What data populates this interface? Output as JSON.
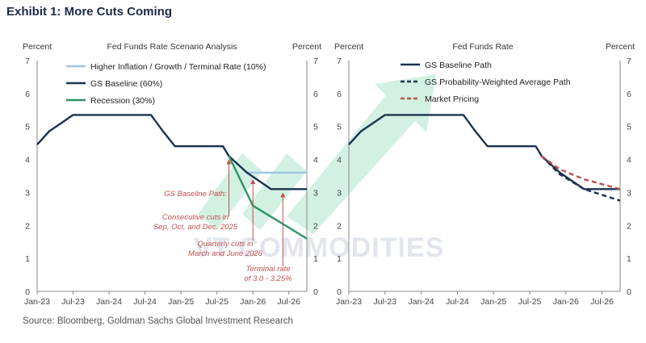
{
  "exhibit_title": "Exhibit 1: More Cuts Coming",
  "source": "Source: Bloomberg, Goldman Sachs Global Investment Research",
  "watermark": "VT COMMODITIES",
  "colors": {
    "baseline": "#1b3350",
    "higher": "#9fc5e3",
    "recession": "#2e9464",
    "prob_weighted": "#1b3350",
    "market": "#c0504d",
    "annotation": "#c0504d",
    "watermark": "#7fd6b0"
  },
  "chart_data": [
    {
      "type": "line",
      "title": "Fed Funds Rate Scenario Analysis",
      "ylabel_left": "Percent",
      "ylabel_right": "Percent",
      "ylim": [
        0,
        7
      ],
      "yticks": [
        "0",
        "1",
        "2",
        "3",
        "4",
        "5",
        "6",
        "7"
      ],
      "xlim": [
        "2023-01",
        "2026-10"
      ],
      "xticks": [
        "Jan-23",
        "Jul-23",
        "Jan-24",
        "Jul-24",
        "Jan-25",
        "Jul-25",
        "Jan-26",
        "Jul-26"
      ],
      "legend_position": "top-left",
      "series": [
        {
          "name": "Higher Inflation / Growth / Terminal Rate (10%)",
          "style": "solid",
          "color_key": "higher",
          "points": [
            [
              "2025-09",
              4.1
            ],
            [
              "2025-12",
              3.6
            ],
            [
              "2026-10",
              3.6
            ]
          ]
        },
        {
          "name": "GS Baseline (60%)",
          "style": "solid",
          "color_key": "baseline",
          "points": [
            [
              "2023-01",
              4.45
            ],
            [
              "2023-03",
              4.85
            ],
            [
              "2023-05",
              5.1
            ],
            [
              "2023-07",
              5.35
            ],
            [
              "2024-08",
              5.35
            ],
            [
              "2024-10",
              4.85
            ],
            [
              "2024-12",
              4.4
            ],
            [
              "2025-08",
              4.4
            ],
            [
              "2025-09",
              4.1
            ],
            [
              "2025-12",
              3.6
            ],
            [
              "2026-04",
              3.1
            ],
            [
              "2026-10",
              3.1
            ]
          ]
        },
        {
          "name": "Recession (30%)",
          "style": "solid",
          "color_key": "recession",
          "points": [
            [
              "2025-09",
              4.1
            ],
            [
              "2026-01",
              2.6
            ],
            [
              "2026-10",
              1.6
            ]
          ]
        }
      ],
      "annotations": [
        {
          "text": [
            "GS Baseline Path:"
          ]
        },
        {
          "text": [
            "Consecutive cuts in",
            "Sep, Oct, and Dec. 2025"
          ]
        },
        {
          "text": [
            "Quarterly cuts in",
            "March and June 2026"
          ]
        },
        {
          "text": [
            "Terminal rate",
            "of 3.0 - 3.25%"
          ]
        }
      ]
    },
    {
      "type": "line",
      "title": "Fed Funds Rate",
      "ylabel_left": "Percent",
      "ylabel_right": "Percent",
      "ylim": [
        0,
        7
      ],
      "yticks": [
        "0",
        "1",
        "2",
        "3",
        "4",
        "5",
        "6",
        "7"
      ],
      "xlim": [
        "2023-01",
        "2026-10"
      ],
      "xticks": [
        "Jan-23",
        "Jul-23",
        "Jan-24",
        "Jul-24",
        "Jan-25",
        "Jul-25",
        "Jan-26",
        "Jul-26"
      ],
      "legend_position": "top-left",
      "series": [
        {
          "name": "GS Baseline Path",
          "style": "solid",
          "color_key": "baseline",
          "points": [
            [
              "2023-01",
              4.45
            ],
            [
              "2023-03",
              4.85
            ],
            [
              "2023-05",
              5.1
            ],
            [
              "2023-07",
              5.35
            ],
            [
              "2024-08",
              5.35
            ],
            [
              "2024-10",
              4.85
            ],
            [
              "2024-12",
              4.4
            ],
            [
              "2025-08",
              4.4
            ],
            [
              "2025-09",
              4.1
            ],
            [
              "2025-12",
              3.6
            ],
            [
              "2026-04",
              3.1
            ],
            [
              "2026-10",
              3.1
            ]
          ]
        },
        {
          "name": "GS Probability-Weighted Average Path",
          "style": "dashed",
          "color_key": "prob_weighted",
          "points": [
            [
              "2025-09",
              4.1
            ],
            [
              "2025-12",
              3.55
            ],
            [
              "2026-04",
              3.1
            ],
            [
              "2026-10",
              2.75
            ]
          ]
        },
        {
          "name": "Market Pricing",
          "style": "dashed",
          "color_key": "market",
          "points": [
            [
              "2025-09",
              4.1
            ],
            [
              "2025-12",
              3.7
            ],
            [
              "2026-04",
              3.4
            ],
            [
              "2026-10",
              3.1
            ]
          ]
        }
      ]
    }
  ]
}
